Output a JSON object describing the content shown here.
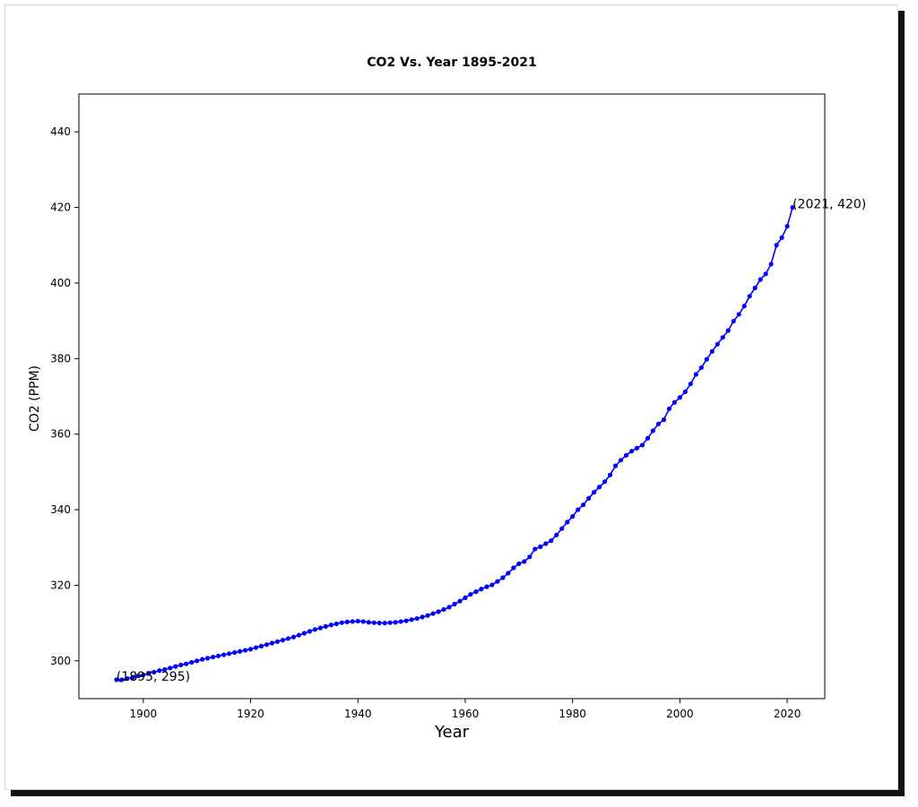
{
  "chart_data": {
    "type": "line",
    "title": "CO2 Vs. Year 1895-2021",
    "xlabel": "Year",
    "ylabel": "CO2 (PPM)",
    "xlim": [
      1888,
      2027
    ],
    "ylim": [
      290,
      450
    ],
    "xticks": [
      1900,
      1920,
      1940,
      1960,
      1980,
      2000,
      2020
    ],
    "yticks": [
      300,
      320,
      340,
      360,
      380,
      400,
      420,
      440
    ],
    "grid": false,
    "legend": "none",
    "colors": {
      "line": "#0000ff",
      "marker": "#0000ff",
      "frame": "#000000"
    },
    "marker": "dot",
    "annotations": [
      {
        "text": "(1895, 295)",
        "x": 1895,
        "y": 295
      },
      {
        "text": "(2021, 420)",
        "x": 2021,
        "y": 420
      }
    ],
    "x": [
      1895,
      1896,
      1897,
      1898,
      1899,
      1900,
      1901,
      1902,
      1903,
      1904,
      1905,
      1906,
      1907,
      1908,
      1909,
      1910,
      1911,
      1912,
      1913,
      1914,
      1915,
      1916,
      1917,
      1918,
      1919,
      1920,
      1921,
      1922,
      1923,
      1924,
      1925,
      1926,
      1927,
      1928,
      1929,
      1930,
      1931,
      1932,
      1933,
      1934,
      1935,
      1936,
      1937,
      1938,
      1939,
      1940,
      1941,
      1942,
      1943,
      1944,
      1945,
      1946,
      1947,
      1948,
      1949,
      1950,
      1951,
      1952,
      1953,
      1954,
      1955,
      1956,
      1957,
      1958,
      1959,
      1960,
      1961,
      1962,
      1963,
      1964,
      1965,
      1966,
      1967,
      1968,
      1969,
      1970,
      1971,
      1972,
      1973,
      1974,
      1975,
      1976,
      1977,
      1978,
      1979,
      1980,
      1981,
      1982,
      1983,
      1984,
      1985,
      1986,
      1987,
      1988,
      1989,
      1990,
      1991,
      1992,
      1993,
      1994,
      1995,
      1996,
      1997,
      1998,
      1999,
      2000,
      2001,
      2002,
      2003,
      2004,
      2005,
      2006,
      2007,
      2008,
      2009,
      2010,
      2011,
      2012,
      2013,
      2014,
      2015,
      2016,
      2017,
      2018,
      2019,
      2020,
      2021
    ],
    "y": [
      295,
      295,
      295.3,
      295.6,
      296,
      296.3,
      296.7,
      297,
      297.4,
      297.7,
      298.1,
      298.5,
      298.9,
      299.2,
      299.6,
      300,
      300.4,
      300.7,
      301,
      301.3,
      301.6,
      301.9,
      302.2,
      302.5,
      302.8,
      303.1,
      303.5,
      303.9,
      304.3,
      304.7,
      305.1,
      305.5,
      305.9,
      306.3,
      306.8,
      307.3,
      307.8,
      308.3,
      308.7,
      309.1,
      309.5,
      309.8,
      310.1,
      310.3,
      310.4,
      310.5,
      310.4,
      310.2,
      310.1,
      310,
      310,
      310.1,
      310.2,
      310.4,
      310.6,
      310.9,
      311.2,
      311.6,
      312,
      312.5,
      313,
      313.6,
      314.2,
      315,
      315.8,
      316.7,
      317.6,
      318.3,
      319,
      319.6,
      320.1,
      321,
      322,
      323.2,
      324.6,
      325.7,
      326.3,
      327.5,
      329.6,
      330.2,
      331,
      331.8,
      333.3,
      335,
      336.7,
      338.2,
      340,
      341.3,
      343,
      344.6,
      346,
      347.4,
      349.2,
      351.6,
      353.1,
      354.4,
      355.5,
      356.3,
      357.1,
      358.9,
      360.9,
      362.7,
      363.8,
      366.7,
      368.4,
      369.7,
      371.2,
      373.3,
      375.8,
      377.6,
      379.8,
      381.9,
      383.8,
      385.6,
      387.4,
      389.9,
      391.7,
      393.9,
      396.5,
      398.7,
      400.9,
      402.4,
      405,
      410,
      412,
      415,
      420
    ]
  }
}
